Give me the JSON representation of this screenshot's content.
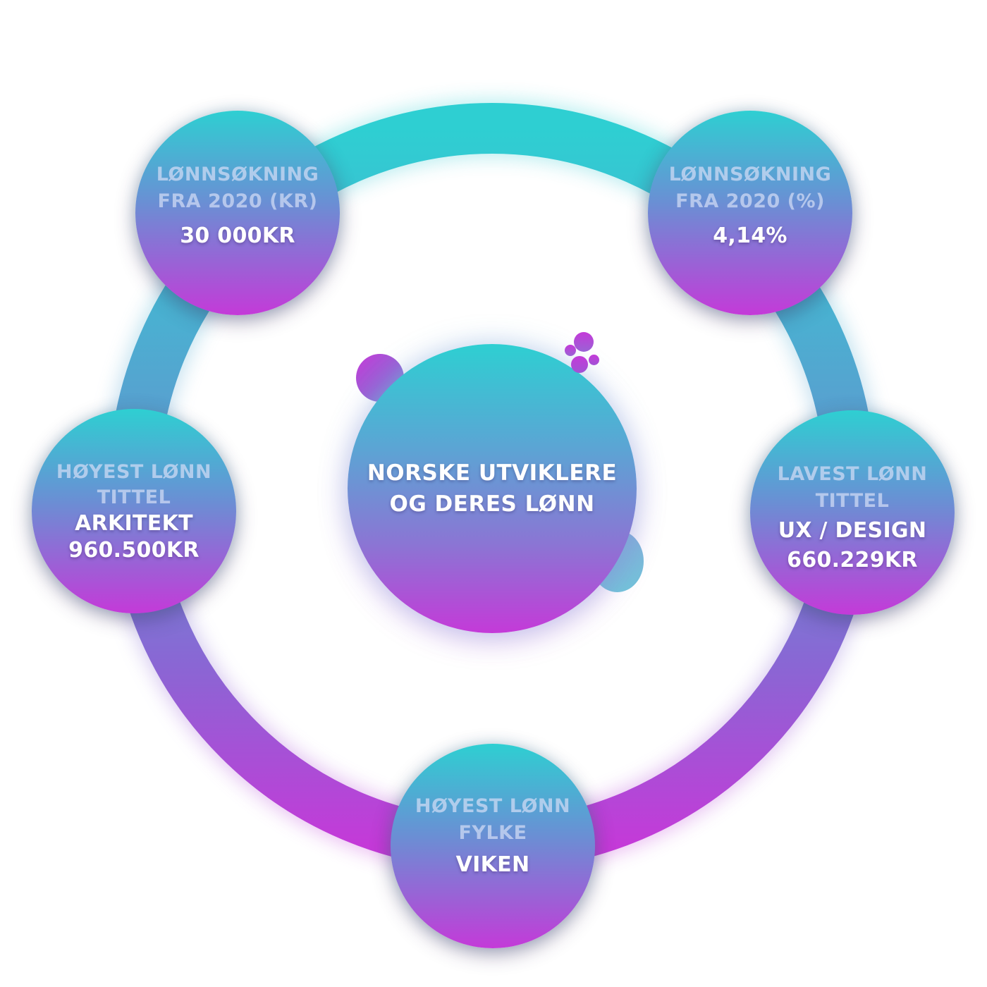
{
  "colors": {
    "teal": "#2ecfd2",
    "blue_violet": "#6a8fd4",
    "magenta": "#c43ad8",
    "label_text": "#d2dcf5",
    "value_text": "#ffffff"
  },
  "center": {
    "line1": "NORSKE UTVIKLERE",
    "line2": "OG DERES LØNN"
  },
  "nodes": {
    "top_left": {
      "label_line1": "LØNNSØKNING",
      "label_line2": "FRA 2020 (KR)",
      "value": "30 000KR"
    },
    "top_right": {
      "label_line1": "LØNNSØKNING",
      "label_line2": "FRA 2020 (%)",
      "value": "4,14%"
    },
    "mid_left": {
      "label_line1": "HØYEST LØNN",
      "label_line2": "TITTEL",
      "value_line1": "ARKITEKT",
      "value_line2": "960.500KR"
    },
    "mid_right": {
      "label_line1": "LAVEST LØNN",
      "label_line2": "TITTEL",
      "value_line1": "UX / DESIGN",
      "value_line2": "660.229KR"
    },
    "bottom": {
      "label_line1": "HØYEST LØNN",
      "label_line2": "FYLKE",
      "value": "VIKEN"
    }
  }
}
